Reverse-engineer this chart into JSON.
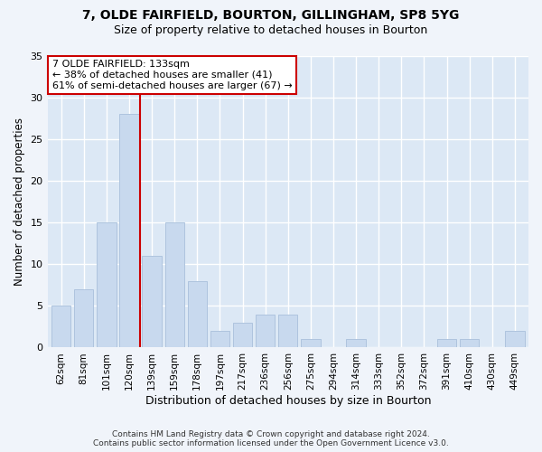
{
  "title1": "7, OLDE FAIRFIELD, BOURTON, GILLINGHAM, SP8 5YG",
  "title2": "Size of property relative to detached houses in Bourton",
  "xlabel": "Distribution of detached houses by size in Bourton",
  "ylabel": "Number of detached properties",
  "categories": [
    "62sqm",
    "81sqm",
    "101sqm",
    "120sqm",
    "139sqm",
    "159sqm",
    "178sqm",
    "197sqm",
    "217sqm",
    "236sqm",
    "256sqm",
    "275sqm",
    "294sqm",
    "314sqm",
    "333sqm",
    "352sqm",
    "372sqm",
    "391sqm",
    "410sqm",
    "430sqm",
    "449sqm"
  ],
  "values": [
    5,
    7,
    15,
    28,
    11,
    15,
    8,
    2,
    3,
    4,
    4,
    1,
    0,
    1,
    0,
    0,
    0,
    1,
    1,
    0,
    2
  ],
  "bar_color": "#c8d9ee",
  "bar_edge_color": "#aec4de",
  "vline_x_index": 3.48,
  "vline_color": "#cc0000",
  "annotation_text": "7 OLDE FAIRFIELD: 133sqm\n← 38% of detached houses are smaller (41)\n61% of semi-detached houses are larger (67) →",
  "annotation_box_color": "white",
  "annotation_box_edge_color": "#cc0000",
  "ylim": [
    0,
    35
  ],
  "yticks": [
    0,
    5,
    10,
    15,
    20,
    25,
    30,
    35
  ],
  "footer": "Contains HM Land Registry data © Crown copyright and database right 2024.\nContains public sector information licensed under the Open Government Licence v3.0.",
  "bg_color": "#f0f4fa",
  "plot_bg_color": "#dce8f5"
}
